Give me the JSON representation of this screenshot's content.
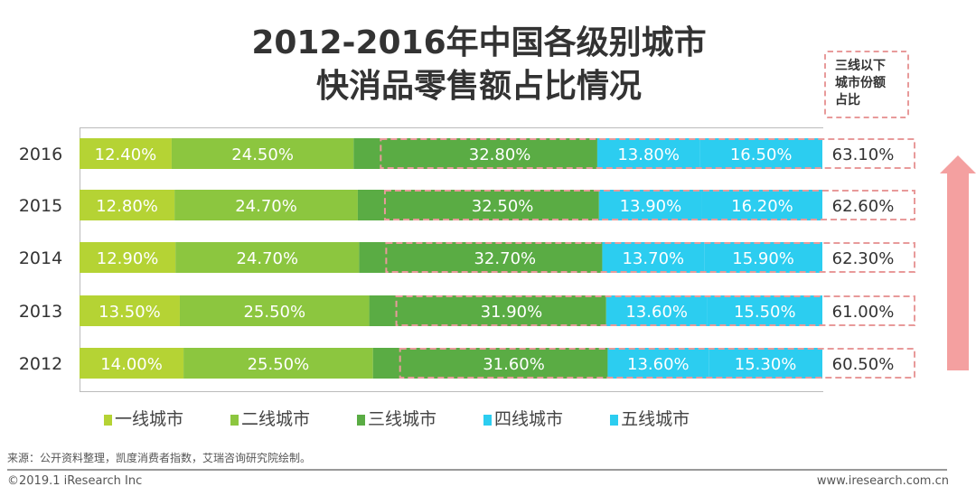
{
  "chart_data": {
    "type": "bar",
    "orientation": "horizontal",
    "stacked": true,
    "title": "2012-2016年中国各级别城市\n快消品零售额占比情况",
    "title_lines": [
      "2012-2016年中国各级别城市",
      "快消品零售额占比情况"
    ],
    "categories": [
      "2016",
      "2015",
      "2014",
      "2013",
      "2012"
    ],
    "series": [
      {
        "name": "一线城市",
        "color": "#b5d334",
        "values": [
          12.4,
          12.8,
          12.9,
          13.5,
          14.0
        ],
        "labels": [
          "12.40%",
          "12.80%",
          "12.90%",
          "13.50%",
          "14.00%"
        ]
      },
      {
        "name": "二线城市",
        "color": "#8cc63f",
        "values": [
          24.5,
          24.7,
          24.7,
          25.5,
          25.5
        ],
        "labels": [
          "24.50%",
          "24.70%",
          "24.70%",
          "25.50%",
          "25.50%"
        ]
      },
      {
        "name": "三线城市",
        "color": "#5aac44",
        "values": [
          32.8,
          32.5,
          32.7,
          31.9,
          31.6
        ],
        "labels": [
          "32.80%",
          "32.50%",
          "32.70%",
          "31.90%",
          "31.60%"
        ]
      },
      {
        "name": "四线城市",
        "color": "#2ccdf0",
        "values": [
          13.8,
          13.9,
          13.7,
          13.6,
          13.6
        ],
        "labels": [
          "13.80%",
          "13.90%",
          "13.70%",
          "13.60%",
          "13.60%"
        ]
      },
      {
        "name": "五线城市",
        "color": "#2ccdf0",
        "values": [
          16.5,
          16.2,
          15.9,
          15.5,
          15.3
        ],
        "labels": [
          "16.50%",
          "16.20%",
          "15.90%",
          "15.50%",
          "15.30%"
        ]
      }
    ],
    "below_tier2_share": {
      "header": [
        "三线以下",
        "城市份额",
        "占比"
      ],
      "values": [
        63.1,
        62.6,
        62.3,
        61.0,
        60.5
      ],
      "labels": [
        "63.10%",
        "62.60%",
        "62.30%",
        "61.00%",
        "60.50%"
      ]
    },
    "legend_placement": "bottom",
    "grid": false,
    "xlim": [
      0,
      100
    ],
    "trend_arrow": "up",
    "highlight_color": "#e89a9a"
  },
  "footer": {
    "source": "来源：公开资料整理，凯度消费者指数，艾瑞咨询研究院绘制。",
    "copyright": "©2019.1 iResearch Inc",
    "url": "www.iresearch.com.cn"
  }
}
